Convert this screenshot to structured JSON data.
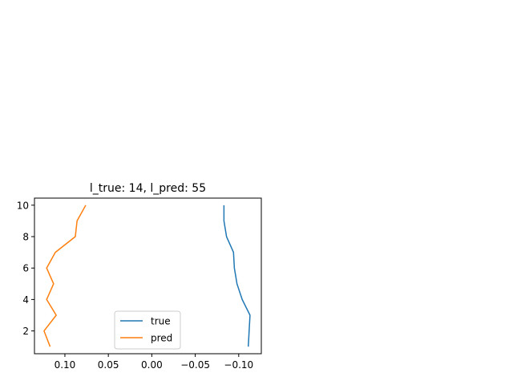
{
  "chart_data": {
    "type": "line",
    "title": "l_true: 14, l_pred: 55",
    "xlabel": "",
    "ylabel": "",
    "xlim": [
      0.135,
      -0.126
    ],
    "ylim": [
      0.55,
      10.45
    ],
    "x_inverted": true,
    "xticks": [
      0.1,
      0.05,
      0.0,
      -0.05,
      -0.1
    ],
    "xtick_labels": [
      "0.10",
      "0.05",
      "0.00",
      "−0.05",
      "−0.10"
    ],
    "yticks": [
      2,
      4,
      6,
      8,
      10
    ],
    "ytick_labels": [
      "2",
      "4",
      "6",
      "8",
      "10"
    ],
    "grid": false,
    "legend": {
      "placement": "lower-center"
    },
    "series": [
      {
        "name": "true",
        "color": "#1f77b4",
        "points": [
          [
            -0.083,
            10
          ],
          [
            -0.083,
            9
          ],
          [
            -0.086,
            8
          ],
          [
            -0.094,
            7
          ],
          [
            -0.095,
            6
          ],
          [
            -0.098,
            5
          ],
          [
            -0.104,
            4
          ],
          [
            -0.113,
            3
          ],
          [
            -0.112,
            2
          ],
          [
            -0.111,
            1
          ]
        ]
      },
      {
        "name": "pred",
        "color": "#ff7f0e",
        "points": [
          [
            0.076,
            10
          ],
          [
            0.086,
            9
          ],
          [
            0.088,
            8
          ],
          [
            0.111,
            7
          ],
          [
            0.121,
            6
          ],
          [
            0.113,
            5
          ],
          [
            0.121,
            4
          ],
          [
            0.11,
            3
          ],
          [
            0.124,
            2
          ],
          [
            0.117,
            1
          ]
        ]
      }
    ]
  }
}
